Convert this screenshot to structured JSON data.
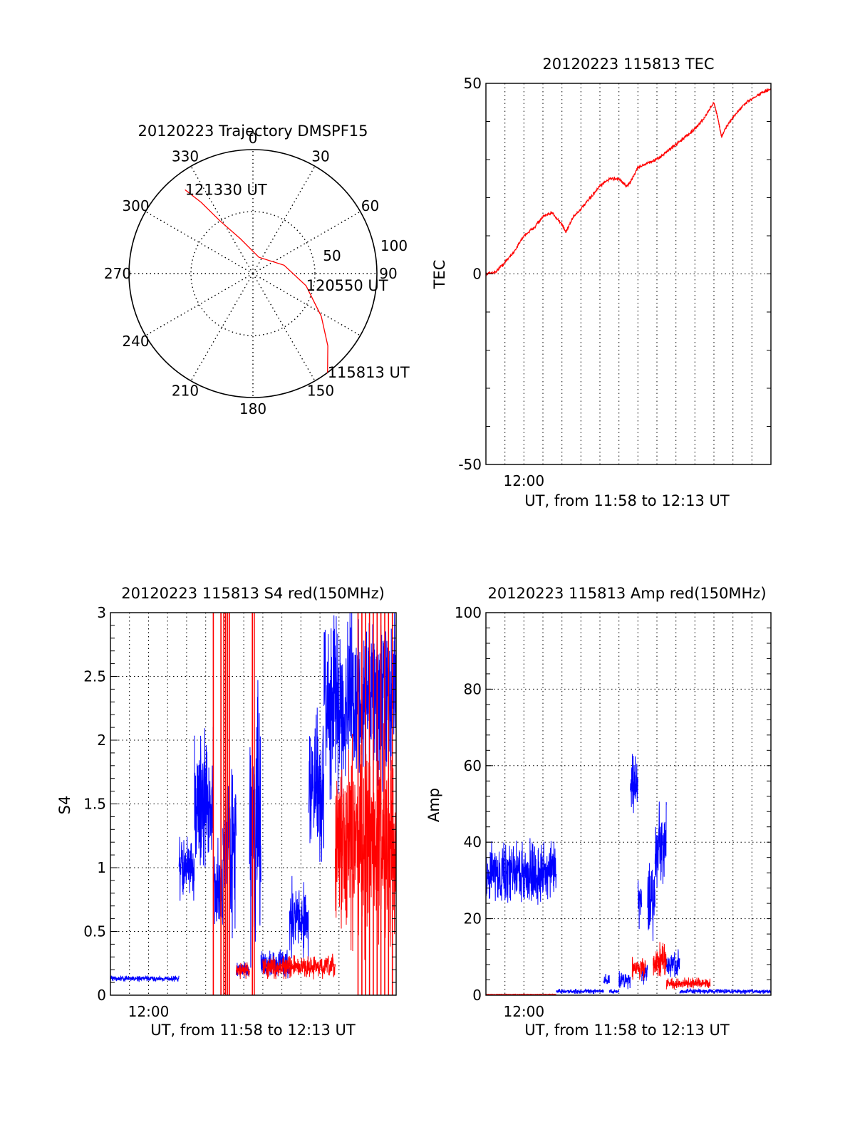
{
  "chart_data": [
    {
      "id": "polar",
      "type": "scatter",
      "title": "20120223 Trajectory DMSPF15",
      "azimuth_labels": [
        "0",
        "30",
        "60",
        "90",
        "150",
        "180",
        "210",
        "240",
        "270",
        "300",
        "330"
      ],
      "radial_labels": [
        "50",
        "100"
      ],
      "azimuth_values": [
        0,
        30,
        60,
        90,
        150,
        180,
        210,
        240,
        270,
        300,
        330
      ],
      "radial_values": [
        50,
        100
      ],
      "rlim": [
        0,
        100
      ],
      "grid": true,
      "series": [
        {
          "color": "#ff0000",
          "points": [
            {
              "az": 143,
              "r": 100
            },
            {
              "az": 134,
              "r": 84
            },
            {
              "az": 122,
              "r": 65
            },
            {
              "az": 103,
              "r": 44
            },
            {
              "az": 75,
              "r": 26
            },
            {
              "az": 20,
              "r": 14
            },
            {
              "az": 340,
              "r": 30
            },
            {
              "az": 328,
              "r": 50
            },
            {
              "az": 324,
              "r": 71
            },
            {
              "az": 321,
              "r": 87
            }
          ]
        }
      ],
      "annotations": [
        {
          "text": "121330 UT",
          "az": 321,
          "r": 87
        },
        {
          "text": "120550 UT",
          "az": 103,
          "r": 44
        },
        {
          "text": "115813 UT",
          "az": 143,
          "r": 100
        }
      ]
    },
    {
      "id": "tec",
      "type": "line",
      "title": "20120223 115813 TEC",
      "xlabel": "UT, from 11:58 to 12:13 UT",
      "ylabel": "TEC",
      "xlim": [
        0,
        15
      ],
      "ylim": [
        -50,
        50
      ],
      "x_ticks": [
        {
          "label": "12:00",
          "value": 2
        }
      ],
      "y_ticks": [
        -50,
        0,
        50
      ],
      "grid": true,
      "series": [
        {
          "color": "#ff0000",
          "noise": 0.6,
          "points": [
            [
              0,
              0
            ],
            [
              0.5,
              0.5
            ],
            [
              1.0,
              3
            ],
            [
              1.5,
              6
            ],
            [
              2.0,
              10
            ],
            [
              2.5,
              12
            ],
            [
              3.0,
              15
            ],
            [
              3.5,
              16
            ],
            [
              4.0,
              13
            ],
            [
              4.2,
              11
            ],
            [
              4.6,
              15
            ],
            [
              5.0,
              17
            ],
            [
              5.5,
              20
            ],
            [
              6.0,
              23
            ],
            [
              6.5,
              25
            ],
            [
              7.0,
              25
            ],
            [
              7.4,
              23
            ],
            [
              7.6,
              24
            ],
            [
              8.0,
              28
            ],
            [
              8.5,
              29
            ],
            [
              9.0,
              30
            ],
            [
              9.5,
              32
            ],
            [
              10.0,
              34
            ],
            [
              10.5,
              36
            ],
            [
              11.0,
              38
            ],
            [
              11.5,
              41
            ],
            [
              12.0,
              45
            ],
            [
              12.2,
              41
            ],
            [
              12.4,
              36
            ],
            [
              12.7,
              39
            ],
            [
              13.0,
              41
            ],
            [
              13.5,
              44
            ],
            [
              14.0,
              46
            ],
            [
              14.5,
              47.5
            ],
            [
              15.0,
              48.5
            ]
          ]
        }
      ]
    },
    {
      "id": "s4",
      "type": "line",
      "title": "20120223 115813 S4 red(150MHz)",
      "xlabel": "UT, from 11:58 to 12:13 UT",
      "ylabel": "S4",
      "xlim": [
        0,
        15
      ],
      "ylim": [
        0,
        3
      ],
      "x_ticks": [
        {
          "label": "12:00",
          "value": 2
        }
      ],
      "y_ticks": [
        "0",
        "0.5",
        "1",
        "1.5",
        "2",
        "2.5",
        "3"
      ],
      "y_tick_values": [
        0,
        0.5,
        1,
        1.5,
        2,
        2.5,
        3
      ],
      "grid": true,
      "series": [
        {
          "color": "#0000ff",
          "segments": [
            {
              "x0": 0,
              "x1": 3.6,
              "base": 0.13,
              "amp": 0.03
            },
            {
              "x0": 3.6,
              "x1": 4.4,
              "base": 1.0,
              "amp": 0.35
            },
            {
              "x0": 4.4,
              "x1": 5.4,
              "base": 1.5,
              "amp": 0.7
            },
            {
              "x0": 5.4,
              "x1": 5.9,
              "base": 0.8,
              "amp": 0.5
            },
            {
              "x0": 5.9,
              "x1": 6.6,
              "base": 1.2,
              "amp": 0.8
            },
            {
              "x0": 6.6,
              "x1": 7.3,
              "base": 0.2,
              "amp": 0.08
            },
            {
              "x0": 7.3,
              "x1": 7.9,
              "base": 1.3,
              "amp": 1.3
            },
            {
              "x0": 7.9,
              "x1": 9.4,
              "base": 0.25,
              "amp": 0.15
            },
            {
              "x0": 9.4,
              "x1": 10.4,
              "base": 0.6,
              "amp": 0.4
            },
            {
              "x0": 10.4,
              "x1": 11.2,
              "base": 1.6,
              "amp": 0.9
            },
            {
              "x0": 11.2,
              "x1": 15.0,
              "base": 2.3,
              "amp": 0.9
            }
          ]
        },
        {
          "color": "#ff0000",
          "segments": [
            {
              "x0": 6.6,
              "x1": 7.3,
              "base": 0.2,
              "amp": 0.08
            },
            {
              "x0": 8.0,
              "x1": 11.8,
              "base": 0.22,
              "amp": 0.12
            },
            {
              "x0": 11.8,
              "x1": 15.0,
              "base": 1.2,
              "amp": 1.0
            }
          ],
          "spikes": [
            5.4,
            5.8,
            5.95,
            6.05,
            6.15,
            6.25,
            7.45,
            7.55,
            13.0,
            13.2,
            13.4,
            13.6,
            13.8,
            14.0,
            14.2,
            14.4,
            14.6,
            14.8
          ]
        }
      ]
    },
    {
      "id": "amp",
      "type": "line",
      "title": "20120223 115813 Amp red(150MHz)",
      "xlabel": "UT, from 11:58 to 12:13 UT",
      "ylabel": "Amp",
      "xlim": [
        0,
        15
      ],
      "ylim": [
        0,
        100
      ],
      "x_ticks": [
        {
          "label": "12:00",
          "value": 2
        }
      ],
      "y_ticks": [
        0,
        20,
        40,
        60,
        80,
        100
      ],
      "grid": true,
      "series": [
        {
          "color": "#0000ff",
          "segments": [
            {
              "x0": 0,
              "x1": 3.7,
              "base": 32,
              "amp": 11
            },
            {
              "x0": 3.7,
              "x1": 6.2,
              "base": 1.0,
              "amp": 0.8
            },
            {
              "x0": 6.2,
              "x1": 6.5,
              "base": 4,
              "amp": 2
            },
            {
              "x0": 6.5,
              "x1": 7.0,
              "base": 1.0,
              "amp": 0.8
            },
            {
              "x0": 7.0,
              "x1": 7.6,
              "base": 4,
              "amp": 3
            },
            {
              "x0": 7.6,
              "x1": 8.0,
              "base": 55,
              "amp": 12
            },
            {
              "x0": 8.0,
              "x1": 8.2,
              "base": 25,
              "amp": 10
            },
            {
              "x0": 8.2,
              "x1": 8.5,
              "base": 6,
              "amp": 4
            },
            {
              "x0": 8.5,
              "x1": 8.9,
              "base": 25,
              "amp": 15
            },
            {
              "x0": 8.9,
              "x1": 9.5,
              "base": 38,
              "amp": 18
            },
            {
              "x0": 9.5,
              "x1": 10.2,
              "base": 8,
              "amp": 5
            },
            {
              "x0": 10.2,
              "x1": 15.0,
              "base": 1.0,
              "amp": 0.8
            }
          ]
        },
        {
          "color": "#ff0000",
          "segments": [
            {
              "x0": 0,
              "x1": 3.7,
              "base": 0.2,
              "amp": 0.1
            },
            {
              "x0": 7.7,
              "x1": 8.4,
              "base": 7,
              "amp": 4
            },
            {
              "x0": 8.8,
              "x1": 9.5,
              "base": 9,
              "amp": 6
            },
            {
              "x0": 9.5,
              "x1": 11.8,
              "base": 3,
              "amp": 2
            }
          ]
        }
      ]
    }
  ]
}
